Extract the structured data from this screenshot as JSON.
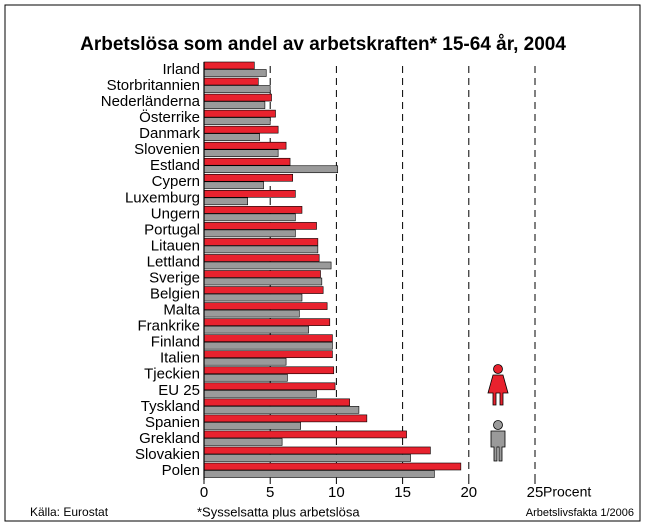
{
  "chart_data": {
    "type": "bar",
    "orientation": "horizontal",
    "title": "Arbetslösa som andel av arbetskraften* 15-64 år, 2004",
    "x_label": "Procent",
    "source": "Källa: Eurostat",
    "footnote": "*Sysselsatta plus arbetslösa",
    "credit": "Arbetslivsfakta 1/2006",
    "categories": [
      "Irland",
      "Storbritannien",
      "Nederländerna",
      "Österrike",
      "Danmark",
      "Slovenien",
      "Estland",
      "Cypern",
      "Luxemburg",
      "Ungern",
      "Portugal",
      "Litauen",
      "Lettland",
      "Sverige",
      "Belgien",
      "Malta",
      "Frankrike",
      "Finland",
      "Italien",
      "Tjeckien",
      "EU 25",
      "Tyskland",
      "Spanien",
      "Grekland",
      "Slovakien",
      "Polen"
    ],
    "series": [
      {
        "color": "#e8222e",
        "values": [
          3.8,
          4.1,
          5.1,
          5.4,
          5.6,
          6.2,
          6.5,
          6.7,
          6.9,
          7.4,
          8.5,
          8.6,
          8.7,
          8.8,
          9.0,
          9.3,
          9.5,
          9.7,
          9.7,
          9.8,
          9.9,
          11.0,
          12.3,
          15.3,
          17.1,
          19.4
        ]
      },
      {
        "color": "#9a9a9a",
        "values": [
          4.7,
          5.0,
          4.6,
          5.0,
          4.2,
          5.6,
          10.1,
          4.5,
          3.3,
          6.9,
          6.9,
          8.6,
          9.6,
          8.9,
          7.4,
          7.2,
          7.9,
          9.7,
          6.2,
          6.3,
          8.5,
          11.7,
          7.3,
          5.9,
          15.6,
          17.4
        ]
      }
    ],
    "xlim": [
      0,
      25
    ],
    "xticks": [
      0,
      5,
      10,
      15,
      20,
      25
    ],
    "grid": true
  }
}
